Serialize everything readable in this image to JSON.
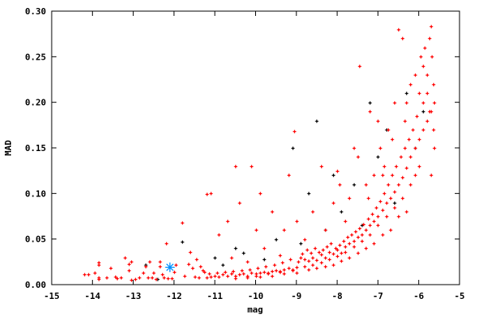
{
  "chart_data": {
    "type": "scatter",
    "title": "",
    "xlabel": "mag",
    "ylabel": "MAD",
    "xlim": [
      -15,
      -5
    ],
    "ylim": [
      0,
      0.3
    ],
    "x_ticks": [
      "-15",
      "-14",
      "-13",
      "-12",
      "-11",
      "-10",
      "-9",
      "-8",
      "-7",
      "-6",
      "-5"
    ],
    "y_ticks": [
      "0.00",
      "0.05",
      "0.10",
      "0.15",
      "0.20",
      "0.25",
      "0.30"
    ],
    "grid": false,
    "legend": "none",
    "series": [
      {
        "color": "#000000",
        "marker": "plus",
        "points": [
          [
            -11.8,
            0.047
          ],
          [
            -11.0,
            0.03
          ],
          [
            -10.5,
            0.04
          ],
          [
            -10.3,
            0.035
          ],
          [
            -9.5,
            0.05
          ],
          [
            -9.1,
            0.15
          ],
          [
            -8.5,
            0.18
          ],
          [
            -8.1,
            0.12
          ],
          [
            -7.9,
            0.08
          ],
          [
            -7.2,
            0.2
          ],
          [
            -8.9,
            0.045
          ],
          [
            -8.3,
            0.06
          ],
          [
            -7.6,
            0.11
          ],
          [
            -7.0,
            0.14
          ],
          [
            -6.8,
            0.17
          ],
          [
            -6.3,
            0.21
          ],
          [
            -6.1,
            0.15
          ],
          [
            -5.9,
            0.19
          ],
          [
            -6.6,
            0.09
          ],
          [
            -9.8,
            0.028
          ],
          [
            -10.8,
            0.022
          ],
          [
            -12.7,
            0.022
          ],
          [
            -12.4,
            0.006
          ],
          [
            -8.7,
            0.1
          ],
          [
            -7.4,
            0.065
          ]
        ]
      },
      {
        "color": "#ff0000",
        "marker": "plus",
        "points": [
          [
            -14.2,
            0.011
          ],
          [
            -14.1,
            0.011
          ],
          [
            -13.95,
            0.013
          ],
          [
            -13.85,
            0.022
          ],
          [
            -13.85,
            0.024
          ],
          [
            -13.85,
            0.006
          ],
          [
            -13.85,
            0.008
          ],
          [
            -13.65,
            0.008
          ],
          [
            -13.55,
            0.018
          ],
          [
            -13.45,
            0.009
          ],
          [
            -13.4,
            0.007
          ],
          [
            -13.3,
            0.008
          ],
          [
            -13.2,
            0.03
          ],
          [
            -13.1,
            0.023
          ],
          [
            -13.05,
            0.025
          ],
          [
            -13.1,
            0.016
          ],
          [
            -13.05,
            0.005
          ],
          [
            -12.95,
            0.006
          ],
          [
            -12.85,
            0.008
          ],
          [
            -12.75,
            0.013
          ],
          [
            -12.7,
            0.02
          ],
          [
            -12.65,
            0.008
          ],
          [
            -12.55,
            0.008
          ],
          [
            -12.6,
            0.025
          ],
          [
            -12.5,
            0.013
          ],
          [
            -12.45,
            0.006
          ],
          [
            -12.35,
            0.025
          ],
          [
            -12.35,
            0.02
          ],
          [
            -12.3,
            0.011
          ],
          [
            -12.25,
            0.008
          ],
          [
            -12.2,
            0.045
          ],
          [
            -12.15,
            0.007
          ],
          [
            -12.05,
            0.007
          ],
          [
            -12.0,
            0.014
          ],
          [
            -11.95,
            0.022
          ],
          [
            -11.8,
            0.068
          ],
          [
            -11.75,
            0.01
          ],
          [
            -11.65,
            0.023
          ],
          [
            -11.6,
            0.036
          ],
          [
            -11.55,
            0.018
          ],
          [
            -11.45,
            0.028
          ],
          [
            -11.35,
            0.02
          ],
          [
            -11.3,
            0.016
          ],
          [
            -11.25,
            0.014
          ],
          [
            -11.2,
            0.099
          ],
          [
            -11.1,
            0.1
          ],
          [
            -11.5,
            0.009
          ],
          [
            -11.4,
            0.008
          ],
          [
            -11.2,
            0.008
          ],
          [
            -11.1,
            0.009
          ],
          [
            -11.0,
            0.01
          ],
          [
            -10.9,
            0.009
          ],
          [
            -10.8,
            0.011
          ],
          [
            -10.7,
            0.01
          ],
          [
            -10.6,
            0.012
          ],
          [
            -10.5,
            0.01
          ],
          [
            -10.4,
            0.011
          ],
          [
            -10.3,
            0.012
          ],
          [
            -10.2,
            0.01
          ],
          [
            -10.1,
            0.013
          ],
          [
            -10.0,
            0.012
          ],
          [
            -9.9,
            0.013
          ],
          [
            -9.8,
            0.014
          ],
          [
            -9.7,
            0.013
          ],
          [
            -9.6,
            0.015
          ],
          [
            -9.5,
            0.016
          ],
          [
            -9.4,
            0.015
          ],
          [
            -9.3,
            0.017
          ],
          [
            -9.2,
            0.018
          ],
          [
            -9.1,
            0.017
          ],
          [
            -9.0,
            0.019
          ],
          [
            -10.9,
            0.055
          ],
          [
            -10.7,
            0.07
          ],
          [
            -10.5,
            0.13
          ],
          [
            -10.4,
            0.09
          ],
          [
            -10.1,
            0.13
          ],
          [
            -10.0,
            0.06
          ],
          [
            -9.9,
            0.1
          ],
          [
            -9.6,
            0.08
          ],
          [
            -9.3,
            0.06
          ],
          [
            -9.2,
            0.12
          ],
          [
            -9.05,
            0.168
          ],
          [
            -9.0,
            0.07
          ],
          [
            -8.9,
            0.03
          ],
          [
            -8.8,
            0.028
          ],
          [
            -8.7,
            0.026
          ],
          [
            -8.6,
            0.03
          ],
          [
            -8.5,
            0.027
          ],
          [
            -8.4,
            0.033
          ],
          [
            -8.3,
            0.03
          ],
          [
            -8.2,
            0.036
          ],
          [
            -8.1,
            0.034
          ],
          [
            -8.0,
            0.038
          ],
          [
            -7.9,
            0.035
          ],
          [
            -7.8,
            0.042
          ],
          [
            -7.7,
            0.045
          ],
          [
            -7.6,
            0.048
          ],
          [
            -7.5,
            0.052
          ],
          [
            -7.4,
            0.055
          ],
          [
            -7.3,
            0.06
          ],
          [
            -7.2,
            0.065
          ],
          [
            -7.1,
            0.07
          ],
          [
            -7.0,
            0.075
          ],
          [
            -6.9,
            0.082
          ],
          [
            -6.8,
            0.09
          ],
          [
            -6.7,
            0.095
          ],
          [
            -6.6,
            0.102
          ],
          [
            -6.5,
            0.11
          ],
          [
            -6.4,
            0.118
          ],
          [
            -6.3,
            0.128
          ],
          [
            -6.2,
            0.14
          ],
          [
            -6.1,
            0.15
          ],
          [
            -6.0,
            0.16
          ],
          [
            -5.9,
            0.17
          ],
          [
            -5.8,
            0.18
          ],
          [
            -5.7,
            0.19
          ],
          [
            -8.8,
            0.05
          ],
          [
            -8.6,
            0.08
          ],
          [
            -8.4,
            0.13
          ],
          [
            -8.3,
            0.06
          ],
          [
            -8.1,
            0.09
          ],
          [
            -7.95,
            0.11
          ],
          [
            -7.8,
            0.07
          ],
          [
            -7.6,
            0.15
          ],
          [
            -7.45,
            0.24
          ],
          [
            -7.3,
            0.11
          ],
          [
            -7.2,
            0.19
          ],
          [
            -7.1,
            0.12
          ],
          [
            -6.95,
            0.15
          ],
          [
            -6.85,
            0.13
          ],
          [
            -6.75,
            0.17
          ],
          [
            -6.65,
            0.16
          ],
          [
            -6.5,
            0.28
          ],
          [
            -6.4,
            0.27
          ],
          [
            -6.35,
            0.18
          ],
          [
            -6.3,
            0.2
          ],
          [
            -6.2,
            0.22
          ],
          [
            -6.1,
            0.23
          ],
          [
            -6.0,
            0.21
          ],
          [
            -5.95,
            0.25
          ],
          [
            -5.9,
            0.24
          ],
          [
            -5.85,
            0.26
          ],
          [
            -5.8,
            0.23
          ],
          [
            -5.75,
            0.27
          ],
          [
            -5.7,
            0.283
          ],
          [
            -5.68,
            0.25
          ],
          [
            -5.65,
            0.22
          ],
          [
            -5.62,
            0.2
          ],
          [
            -5.65,
            0.17
          ],
          [
            -5.62,
            0.15
          ],
          [
            -5.7,
            0.12
          ],
          [
            -6.3,
            0.08
          ],
          [
            -6.5,
            0.075
          ],
          [
            -6.7,
            0.06
          ],
          [
            -6.9,
            0.055
          ],
          [
            -7.1,
            0.045
          ],
          [
            -7.3,
            0.04
          ],
          [
            -7.5,
            0.035
          ],
          [
            -7.7,
            0.03
          ],
          [
            -7.9,
            0.026
          ],
          [
            -8.1,
            0.022
          ],
          [
            -8.3,
            0.02
          ],
          [
            -8.5,
            0.018
          ],
          [
            -8.7,
            0.017
          ],
          [
            -9.0,
            0.013
          ],
          [
            -9.3,
            0.012
          ],
          [
            -9.6,
            0.01
          ],
          [
            -9.9,
            0.009
          ],
          [
            -10.2,
            0.008
          ],
          [
            -10.5,
            0.007
          ],
          [
            -6.0,
            0.13
          ],
          [
            -6.1,
            0.12
          ],
          [
            -6.2,
            0.11
          ],
          [
            -6.4,
            0.095
          ],
          [
            -6.6,
            0.085
          ],
          [
            -6.8,
            0.075
          ],
          [
            -7.0,
            0.065
          ],
          [
            -7.2,
            0.055
          ],
          [
            -7.4,
            0.048
          ],
          [
            -7.6,
            0.042
          ],
          [
            -7.8,
            0.036
          ],
          [
            -8.0,
            0.031
          ],
          [
            -8.2,
            0.028
          ],
          [
            -8.4,
            0.024
          ],
          [
            -8.6,
            0.022
          ],
          [
            -8.8,
            0.02
          ],
          [
            -9.1,
            0.016
          ],
          [
            -9.4,
            0.014
          ],
          [
            -9.7,
            0.012
          ],
          [
            -10.0,
            0.01
          ],
          [
            -5.9,
            0.2
          ],
          [
            -5.8,
            0.21
          ],
          [
            -5.75,
            0.19
          ],
          [
            -6.05,
            0.185
          ],
          [
            -6.15,
            0.17
          ],
          [
            -6.25,
            0.16
          ],
          [
            -6.35,
            0.15
          ],
          [
            -6.45,
            0.14
          ],
          [
            -6.55,
            0.13
          ],
          [
            -6.65,
            0.12
          ],
          [
            -6.75,
            0.11
          ],
          [
            -6.85,
            0.1
          ],
          [
            -6.95,
            0.092
          ],
          [
            -7.05,
            0.085
          ],
          [
            -7.15,
            0.078
          ],
          [
            -7.25,
            0.072
          ],
          [
            -7.35,
            0.066
          ],
          [
            -7.45,
            0.062
          ],
          [
            -7.55,
            0.058
          ],
          [
            -7.65,
            0.055
          ],
          [
            -7.75,
            0.052
          ],
          [
            -7.85,
            0.048
          ],
          [
            -7.95,
            0.044
          ],
          [
            -8.05,
            0.04
          ],
          [
            -8.15,
            0.045
          ],
          [
            -8.25,
            0.042
          ],
          [
            -8.35,
            0.038
          ],
          [
            -8.45,
            0.036
          ],
          [
            -8.55,
            0.04
          ],
          [
            -8.65,
            0.035
          ],
          [
            -8.75,
            0.038
          ],
          [
            -8.85,
            0.034
          ],
          [
            -8.95,
            0.025
          ],
          [
            -9.15,
            0.028
          ],
          [
            -9.35,
            0.024
          ],
          [
            -9.55,
            0.022
          ],
          [
            -9.75,
            0.02
          ],
          [
            -9.95,
            0.018
          ],
          [
            -10.15,
            0.017
          ],
          [
            -10.35,
            0.016
          ],
          [
            -10.55,
            0.015
          ],
          [
            -10.75,
            0.014
          ],
          [
            -10.95,
            0.013
          ],
          [
            -11.15,
            0.012
          ],
          [
            -9.4,
            0.032
          ],
          [
            -9.8,
            0.04
          ],
          [
            -10.2,
            0.025
          ],
          [
            -10.6,
            0.03
          ],
          [
            -8.0,
            0.125
          ],
          [
            -7.7,
            0.095
          ],
          [
            -7.5,
            0.14
          ],
          [
            -7.0,
            0.18
          ],
          [
            -6.6,
            0.2
          ],
          [
            -6.9,
            0.12
          ],
          [
            -7.25,
            0.095
          ]
        ]
      }
    ],
    "highlight": {
      "x": -12.1,
      "y": 0.019,
      "color": "#0090ff",
      "marker": "star"
    }
  }
}
